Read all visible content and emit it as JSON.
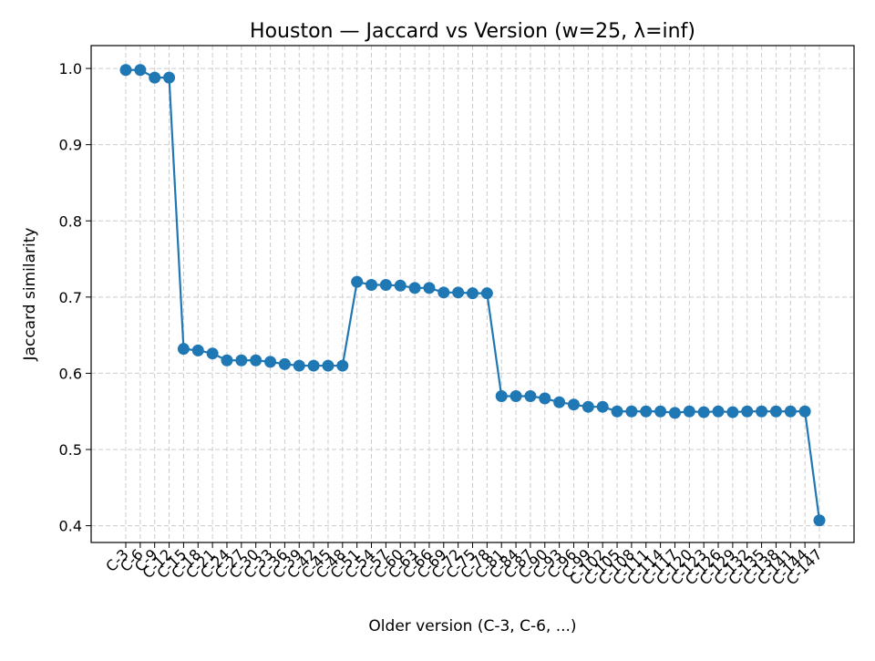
{
  "chart_data": {
    "type": "line",
    "title": "Houston — Jaccard vs Version (w=25, λ=inf)",
    "xlabel": "Older version (C-3, C-6, ...)",
    "ylabel": "Jaccard similarity",
    "ylim": [
      0.378,
      1.03
    ],
    "yticks": [
      "0.4",
      "0.5",
      "0.6",
      "0.7",
      "0.8",
      "0.9",
      "1.0"
    ],
    "grid": true,
    "grid_style": "dashed",
    "marker": "circle",
    "series_color": "#1f77b4",
    "categories": [
      "C-3",
      "C-6",
      "C-9",
      "C-12",
      "C-15",
      "C-18",
      "C-21",
      "C-24",
      "C-27",
      "C-30",
      "C-33",
      "C-36",
      "C-39",
      "C-42",
      "C-45",
      "C-48",
      "C-51",
      "C-54",
      "C-57",
      "C-60",
      "C-63",
      "C-66",
      "C-69",
      "C-72",
      "C-75",
      "C-78",
      "C-81",
      "C-84",
      "C-87",
      "C-90",
      "C-93",
      "C-96",
      "C-99",
      "C-102",
      "C-105",
      "C-108",
      "C-111",
      "C-114",
      "C-117",
      "C-120",
      "C-123",
      "C-126",
      "C-129",
      "C-132",
      "C-135",
      "C-138",
      "C-141",
      "C-144",
      "C-147"
    ],
    "values": [
      0.998,
      0.998,
      0.988,
      0.988,
      0.632,
      0.63,
      0.626,
      0.617,
      0.617,
      0.617,
      0.615,
      0.612,
      0.61,
      0.61,
      0.61,
      0.61,
      0.72,
      0.716,
      0.716,
      0.715,
      0.712,
      0.712,
      0.706,
      0.706,
      0.705,
      0.705,
      0.57,
      0.57,
      0.57,
      0.567,
      0.562,
      0.559,
      0.556,
      0.556,
      0.55,
      0.55,
      0.55,
      0.55,
      0.548,
      0.55,
      0.549,
      0.55,
      0.549,
      0.55,
      0.55,
      0.55,
      0.55,
      0.55,
      0.407
    ]
  }
}
